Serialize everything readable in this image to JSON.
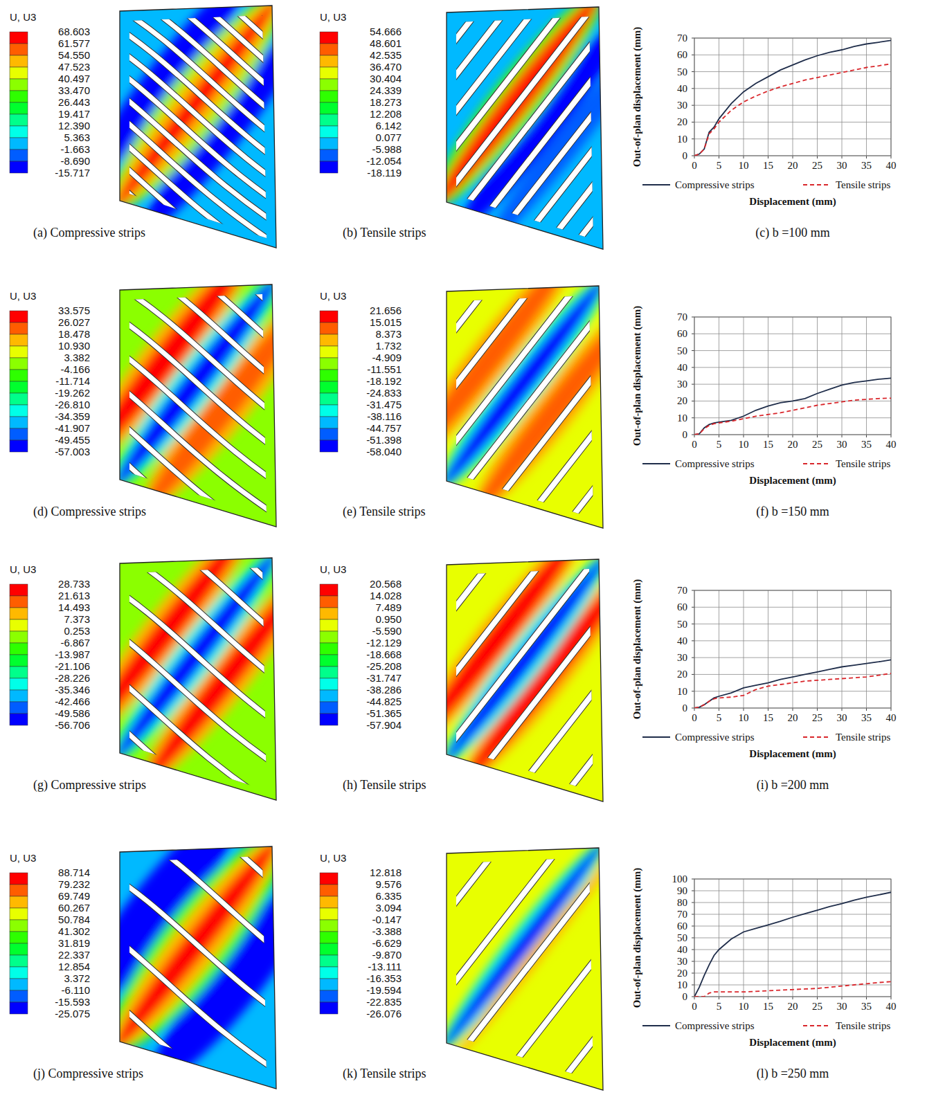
{
  "contour_plots": [
    {
      "caption": "(a) Compressive strips",
      "legend_title": "U, U3",
      "legend_values": [
        68.603,
        61.577,
        {
          "value": 54.55,
          "label": "54.550"
        },
        47.523,
        40.497,
        {
          "value": 33.47,
          "label": "33.470"
        },
        26.443,
        19.417,
        {
          "value": 12.39,
          "label": "12.390"
        },
        5.363,
        -1.663,
        {
          "value": -8.69,
          "label": "-8.690"
        },
        -15.717
      ]
    },
    {
      "caption": "(b) Tensile strips",
      "legend_title": "U, U3",
      "legend_values": [
        54.666,
        48.601,
        42.535,
        {
          "value": 36.47,
          "label": "36.470"
        },
        30.404,
        24.339,
        18.273,
        12.208,
        6.142,
        0.077,
        -5.988,
        -12.054,
        -18.119
      ]
    },
    {
      "caption": "(d) Compressive strips",
      "legend_title": "U, U3",
      "legend_values": [
        33.575,
        26.027,
        18.478,
        {
          "value": 10.93,
          "label": "10.930"
        },
        3.382,
        -4.166,
        -11.714,
        -19.262,
        {
          "value": -26.81,
          "label": "-26.810"
        },
        -34.359,
        -41.907,
        -49.455,
        -57.003
      ]
    },
    {
      "caption": "(e) Tensile strips",
      "legend_title": "U, U3",
      "legend_values": [
        21.656,
        15.015,
        8.373,
        1.732,
        -4.909,
        -11.551,
        -18.192,
        -24.833,
        -31.475,
        -38.116,
        -44.757,
        -51.398,
        {
          "value": -58.04,
          "label": "-58.040"
        }
      ]
    },
    {
      "caption": "(g) Compressive strips",
      "legend_title": "U, U3",
      "legend_values": [
        28.733,
        21.613,
        14.493,
        7.373,
        0.253,
        -6.867,
        -13.987,
        -21.106,
        -28.226,
        -35.346,
        -42.466,
        -49.586,
        -56.706
      ]
    },
    {
      "caption": "(h) Tensile strips",
      "legend_title": "U, U3",
      "legend_values": [
        20.568,
        14.028,
        7.489,
        {
          "value": 0.95,
          "label": "0.950"
        },
        {
          "value": -5.59,
          "label": "-5.590"
        },
        -12.129,
        -18.668,
        -25.208,
        -31.747,
        -38.286,
        -44.825,
        -51.365,
        -57.904
      ]
    },
    {
      "caption": "(j) Compressive strips",
      "legend_title": "U, U3",
      "legend_values": [
        88.714,
        79.232,
        69.749,
        60.267,
        50.784,
        41.302,
        31.819,
        22.337,
        12.854,
        3.372,
        {
          "value": -6.11,
          "label": "-6.110"
        },
        -15.593,
        -25.075
      ]
    },
    {
      "caption": "(k) Tensile strips",
      "legend_title": "U, U3",
      "legend_values": [
        12.818,
        9.576,
        6.335,
        3.094,
        -0.147,
        -3.388,
        -6.629,
        {
          "value": -9.87,
          "label": "-9.870"
        },
        -13.111,
        -16.353,
        -19.594,
        -22.835,
        -26.076
      ]
    }
  ],
  "chart_data": [
    {
      "type": "line",
      "title": "(c) b =100 mm",
      "x_label": "Displacement (mm)",
      "y_label": "Out-of-plan  displacement (mm)",
      "x": [
        0,
        1,
        2,
        3,
        4,
        5,
        7.5,
        10,
        12.5,
        15,
        17.5,
        20,
        22.5,
        25,
        27.5,
        30,
        32.5,
        35,
        37.5,
        40
      ],
      "xlim": [
        0,
        40
      ],
      "xticks": [
        0,
        5,
        10,
        15,
        20,
        25,
        30,
        35,
        40
      ],
      "ylim": [
        0,
        70
      ],
      "yticks": [
        0,
        10,
        20,
        30,
        40,
        50,
        60,
        70
      ],
      "grid": true,
      "legend": "bottom",
      "series": [
        {
          "name": "Compressive strips",
          "color": "#1f2d4a",
          "line_style": "solid",
          "values": [
            0,
            1,
            4,
            14,
            17,
            22,
            31,
            38,
            43,
            47,
            51,
            54,
            57,
            59.5,
            61.5,
            63,
            65,
            66.5,
            67.5,
            68.6
          ]
        },
        {
          "name": "Tensile strips",
          "color": "#d9262b",
          "line_style": "dashed",
          "values": [
            0,
            1,
            4,
            13,
            16,
            20,
            27,
            32,
            35.5,
            38.5,
            41,
            43,
            45,
            46.5,
            48,
            49.5,
            51,
            52.5,
            53.5,
            54.7
          ]
        }
      ]
    },
    {
      "type": "line",
      "title": "(f) b =150 mm",
      "x_label": "Displacement (mm)",
      "y_label": "Out-of-plan  displacement (mm)",
      "x": [
        0,
        1,
        2,
        3,
        4,
        5,
        7.5,
        10,
        12.5,
        15,
        17.5,
        20,
        22.5,
        25,
        27.5,
        30,
        32.5,
        35,
        37.5,
        40
      ],
      "xlim": [
        0,
        40
      ],
      "xticks": [
        0,
        5,
        10,
        15,
        20,
        25,
        30,
        35,
        40
      ],
      "ylim": [
        0,
        70
      ],
      "yticks": [
        0,
        10,
        20,
        30,
        40,
        50,
        60,
        70
      ],
      "grid": true,
      "legend": "bottom",
      "series": [
        {
          "name": "Compressive strips",
          "color": "#1f2d4a",
          "line_style": "solid",
          "values": [
            0,
            0.5,
            4,
            6,
            7,
            7.5,
            8.5,
            11,
            14.5,
            17,
            19,
            20,
            21.5,
            24.5,
            27,
            29.5,
            31,
            32,
            33,
            33.6
          ]
        },
        {
          "name": "Tensile strips",
          "color": "#d9262b",
          "line_style": "dashed",
          "values": [
            0,
            0.5,
            3.5,
            5.5,
            6.5,
            7,
            8,
            9.5,
            11,
            12,
            13,
            14.5,
            16,
            17.5,
            18.5,
            19.5,
            20.5,
            21,
            21.5,
            21.7
          ]
        }
      ]
    },
    {
      "type": "line",
      "title": "(i) b =200 mm",
      "x_label": "Displacement (mm)",
      "y_label": "Out-of-plan  displacement (mm)",
      "x": [
        0,
        1,
        2,
        3,
        4,
        5,
        7.5,
        10,
        12.5,
        15,
        17.5,
        20,
        22.5,
        25,
        27.5,
        30,
        32.5,
        35,
        37.5,
        40
      ],
      "xlim": [
        0,
        40
      ],
      "xticks": [
        0,
        5,
        10,
        15,
        20,
        25,
        30,
        35,
        40
      ],
      "ylim": [
        0,
        70
      ],
      "yticks": [
        0,
        10,
        20,
        30,
        40,
        50,
        60,
        70
      ],
      "grid": true,
      "legend": "bottom",
      "series": [
        {
          "name": "Compressive strips",
          "color": "#1f2d4a",
          "line_style": "solid",
          "values": [
            0,
            0.5,
            2,
            4,
            6,
            7,
            9,
            12,
            13.5,
            15,
            17,
            18.5,
            20,
            21.5,
            23,
            24.5,
            25.5,
            26.5,
            27.5,
            28.7
          ]
        },
        {
          "name": "Tensile strips",
          "color": "#d9262b",
          "line_style": "dashed",
          "values": [
            0,
            0.5,
            2,
            4,
            5.5,
            6,
            6.5,
            7.5,
            11,
            13,
            14,
            15,
            16,
            16.5,
            17,
            17.5,
            18,
            18.5,
            19.5,
            20.6
          ]
        }
      ]
    },
    {
      "type": "line",
      "title": "(l) b =250 mm",
      "x_label": "Displacement (mm)",
      "y_label": "Out-of-plan  displacement (mm)",
      "x": [
        0,
        1,
        2,
        3,
        4,
        5,
        7.5,
        10,
        12.5,
        15,
        17.5,
        20,
        22.5,
        25,
        27.5,
        30,
        32.5,
        35,
        37.5,
        40
      ],
      "xlim": [
        0,
        40
      ],
      "xticks": [
        0,
        5,
        10,
        15,
        20,
        25,
        30,
        35,
        40
      ],
      "ylim": [
        0,
        100
      ],
      "yticks": [
        0,
        10,
        20,
        30,
        40,
        50,
        60,
        70,
        80,
        90,
        100
      ],
      "grid": true,
      "legend": "bottom",
      "series": [
        {
          "name": "Compressive strips",
          "color": "#1f2d4a",
          "line_style": "solid",
          "values": [
            0,
            8,
            18,
            27,
            35,
            40,
            49,
            55,
            58,
            61,
            64,
            67.5,
            70.5,
            73.5,
            76.5,
            79,
            82,
            84.5,
            86.5,
            88.7
          ]
        },
        {
          "name": "Tensile strips",
          "color": "#d9262b",
          "line_style": "dashed",
          "values": [
            0,
            0,
            0,
            3,
            4,
            4,
            4,
            4,
            4.5,
            5,
            5.5,
            6,
            6.5,
            7,
            8,
            9,
            10,
            11,
            12,
            12.8
          ]
        }
      ]
    }
  ]
}
